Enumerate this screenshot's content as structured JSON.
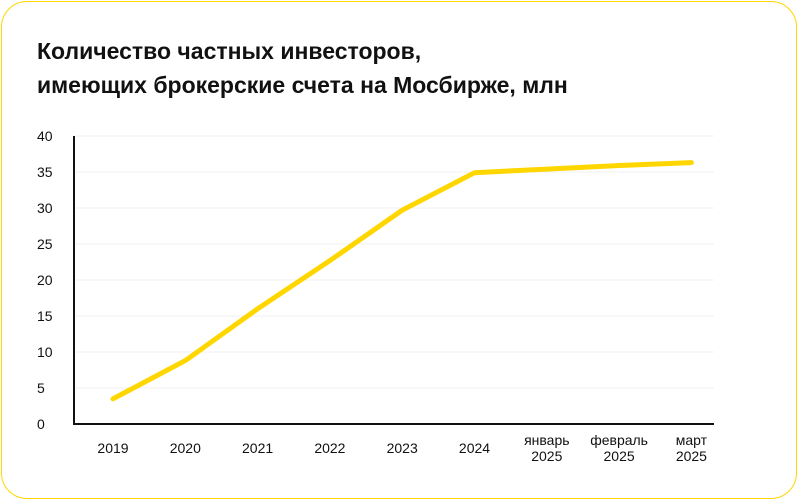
{
  "chart_data": {
    "type": "line",
    "title_lines": [
      "Количество частных инвесторов,",
      "имеющих брокерские счета на Мосбирже, млн"
    ],
    "categories": [
      [
        "2019"
      ],
      [
        "2020"
      ],
      [
        "2021"
      ],
      [
        "2022"
      ],
      [
        "2023"
      ],
      [
        "2024"
      ],
      [
        "январь",
        "2025"
      ],
      [
        "февраль",
        "2025"
      ],
      [
        "март",
        "2025"
      ]
    ],
    "series": [
      {
        "values": [
          3.5,
          8.8,
          16.0,
          22.7,
          29.7,
          34.9,
          35.4,
          35.9,
          36.3
        ],
        "color": "#ffd600"
      }
    ],
    "ylim": [
      0,
      40
    ],
    "yticks": [
      0,
      5,
      10,
      15,
      20,
      25,
      30,
      35,
      40
    ],
    "grid": true,
    "grid_color": "#f2f2f2",
    "axis_color": "#111111",
    "border_color": "#ffd600"
  }
}
